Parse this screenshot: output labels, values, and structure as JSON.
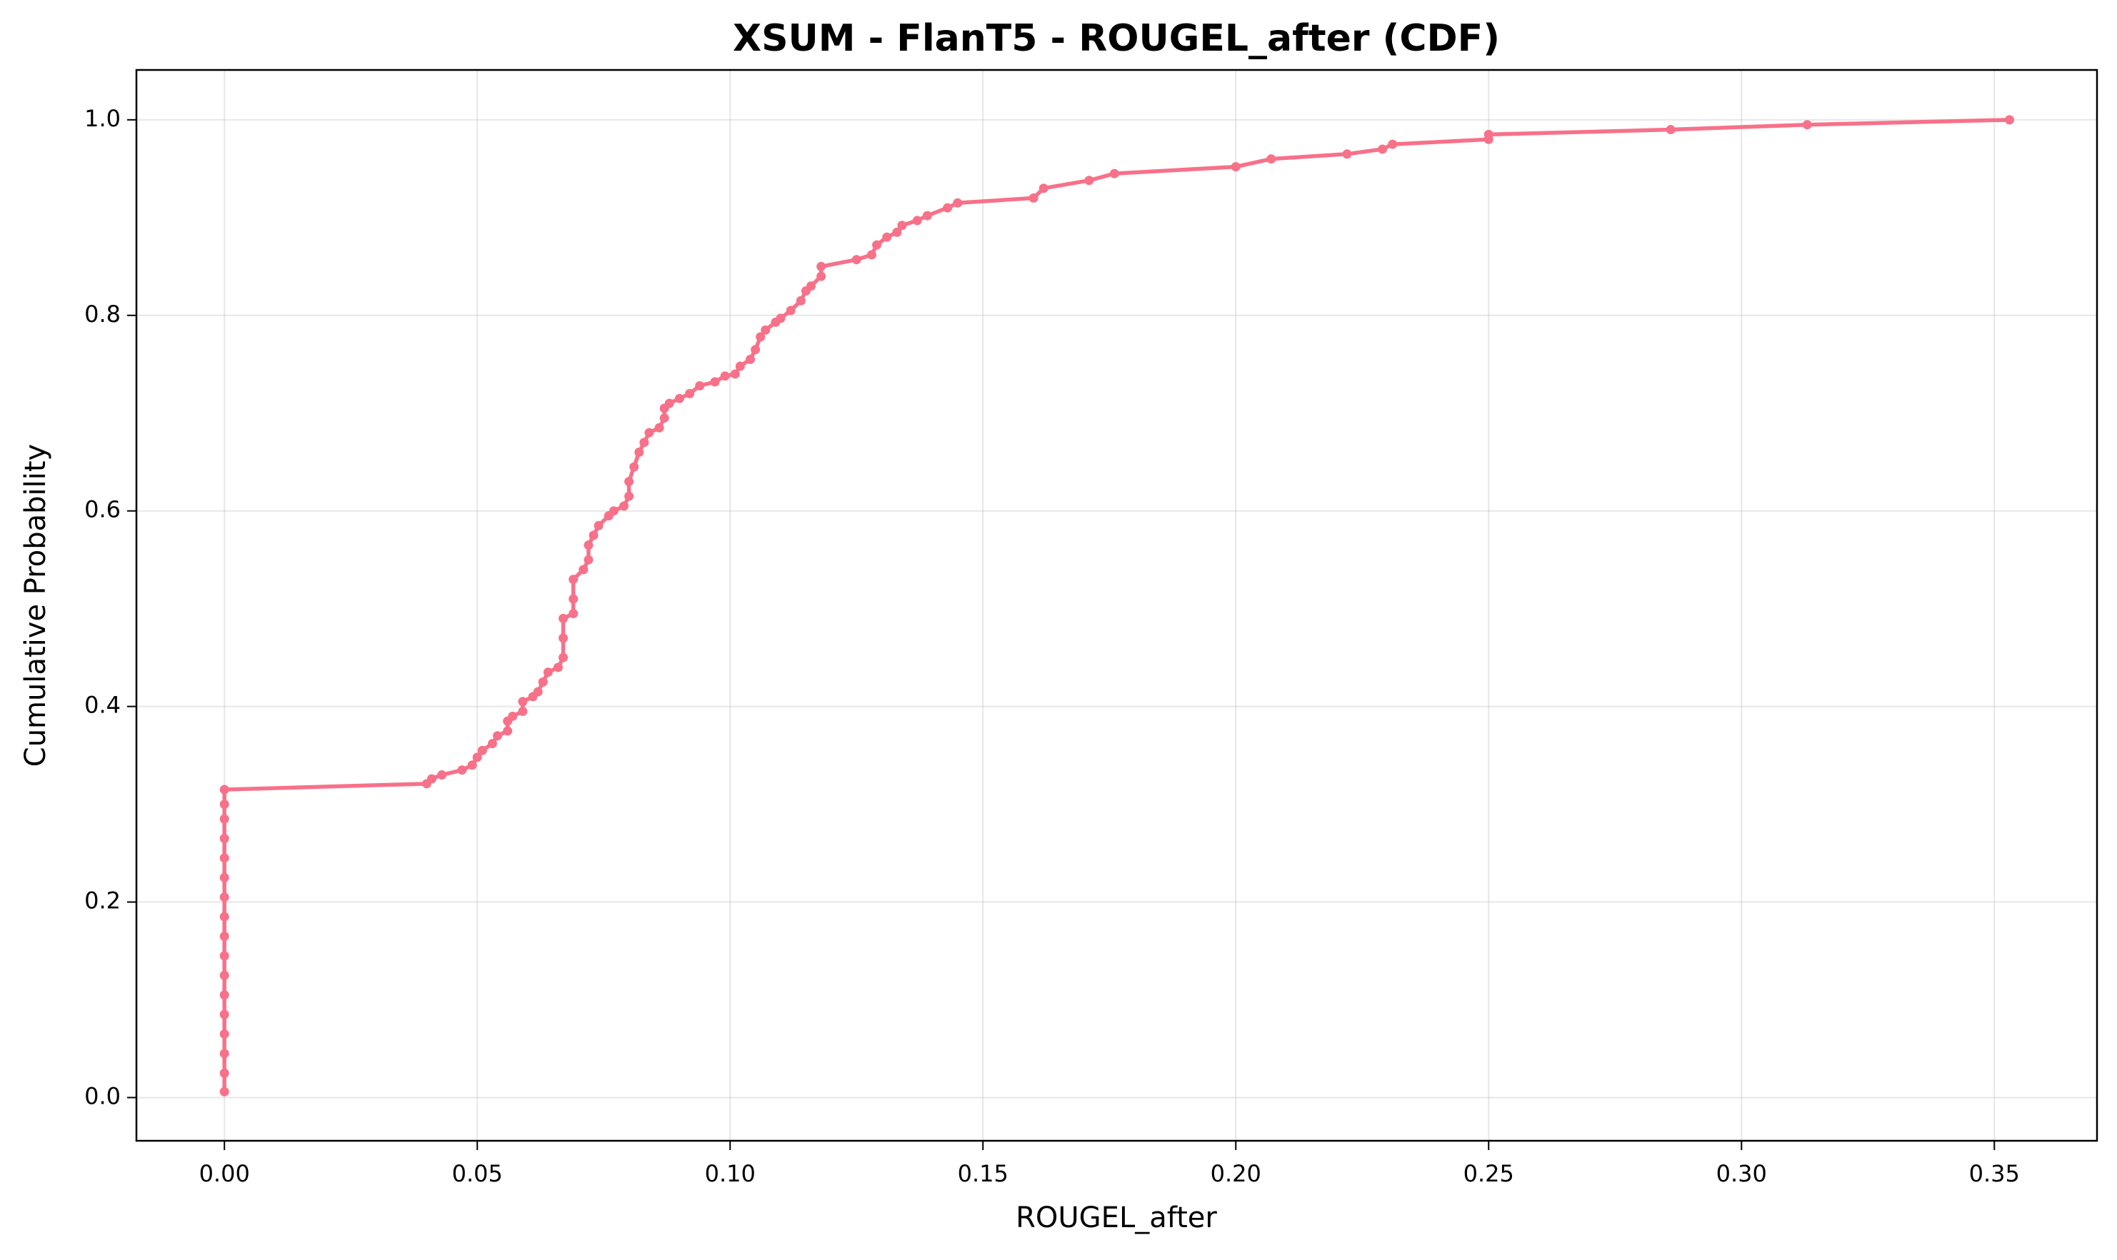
{
  "chart_data": {
    "type": "line",
    "title": "XSUM - FlanT5 - ROUGEL_after (CDF)",
    "xlabel": "ROUGEL_after",
    "ylabel": "Cumulative Probability",
    "color": "#f77189",
    "grid": true,
    "x": [
      0,
      0,
      0,
      0,
      0,
      0,
      0,
      0,
      0,
      0,
      0,
      0,
      0,
      0,
      0,
      0,
      0,
      0.04,
      0.041,
      0.043,
      0.047,
      0.049,
      0.05,
      0.051,
      0.053,
      0.054,
      0.056,
      0.056,
      0.057,
      0.059,
      0.059,
      0.061,
      0.062,
      0.063,
      0.064,
      0.066,
      0.067,
      0.067,
      0.067,
      0.069,
      0.069,
      0.069,
      0.071,
      0.072,
      0.072,
      0.073,
      0.074,
      0.076,
      0.077,
      0.079,
      0.08,
      0.08,
      0.081,
      0.082,
      0.083,
      0.084,
      0.086,
      0.087,
      0.087,
      0.088,
      0.09,
      0.092,
      0.094,
      0.097,
      0.099,
      0.101,
      0.102,
      0.104,
      0.105,
      0.106,
      0.107,
      0.109,
      0.11,
      0.112,
      0.114,
      0.115,
      0.116,
      0.118,
      0.118,
      0.125,
      0.128,
      0.129,
      0.131,
      0.133,
      0.134,
      0.137,
      0.139,
      0.143,
      0.145,
      0.16,
      0.162,
      0.171,
      0.176,
      0.2,
      0.207,
      0.222,
      0.229,
      0.231,
      0.25,
      0.25,
      0.286,
      0.313,
      0.353
    ],
    "values": [
      0.006,
      0.025,
      0.045,
      0.065,
      0.085,
      0.105,
      0.125,
      0.145,
      0.165,
      0.185,
      0.205,
      0.225,
      0.245,
      0.265,
      0.285,
      0.3,
      0.315,
      0.321,
      0.326,
      0.33,
      0.335,
      0.34,
      0.348,
      0.355,
      0.362,
      0.37,
      0.375,
      0.385,
      0.39,
      0.395,
      0.405,
      0.41,
      0.415,
      0.425,
      0.435,
      0.44,
      0.45,
      0.47,
      0.49,
      0.495,
      0.51,
      0.53,
      0.54,
      0.55,
      0.565,
      0.575,
      0.585,
      0.595,
      0.6,
      0.605,
      0.615,
      0.63,
      0.645,
      0.66,
      0.67,
      0.68,
      0.685,
      0.695,
      0.705,
      0.71,
      0.715,
      0.72,
      0.728,
      0.732,
      0.738,
      0.74,
      0.748,
      0.755,
      0.765,
      0.778,
      0.785,
      0.793,
      0.797,
      0.805,
      0.815,
      0.825,
      0.83,
      0.84,
      0.85,
      0.857,
      0.862,
      0.872,
      0.88,
      0.885,
      0.892,
      0.897,
      0.902,
      0.91,
      0.915,
      0.92,
      0.93,
      0.938,
      0.945,
      0.952,
      0.96,
      0.965,
      0.97,
      0.975,
      0.98,
      0.985,
      0.99,
      0.995,
      1.0
    ],
    "xlim": [
      -0.0174,
      0.3703
    ],
    "ylim": [
      -0.0442,
      1.051
    ],
    "xticks": [
      {
        "value": 0,
        "label": "0.00"
      },
      {
        "value": 0.05,
        "label": "0.05"
      },
      {
        "value": 0.1,
        "label": "0.10"
      },
      {
        "value": 0.15,
        "label": "0.15"
      },
      {
        "value": 0.2,
        "label": "0.20"
      },
      {
        "value": 0.25,
        "label": "0.25"
      },
      {
        "value": 0.3,
        "label": "0.30"
      },
      {
        "value": 0.35,
        "label": "0.35"
      }
    ],
    "yticks": [
      {
        "value": 0,
        "label": "0.0"
      },
      {
        "value": 0.2,
        "label": "0.2"
      },
      {
        "value": 0.4,
        "label": "0.4"
      },
      {
        "value": 0.6,
        "label": "0.6"
      },
      {
        "value": 0.8,
        "label": "0.8"
      },
      {
        "value": 1,
        "label": "1.0"
      }
    ]
  }
}
